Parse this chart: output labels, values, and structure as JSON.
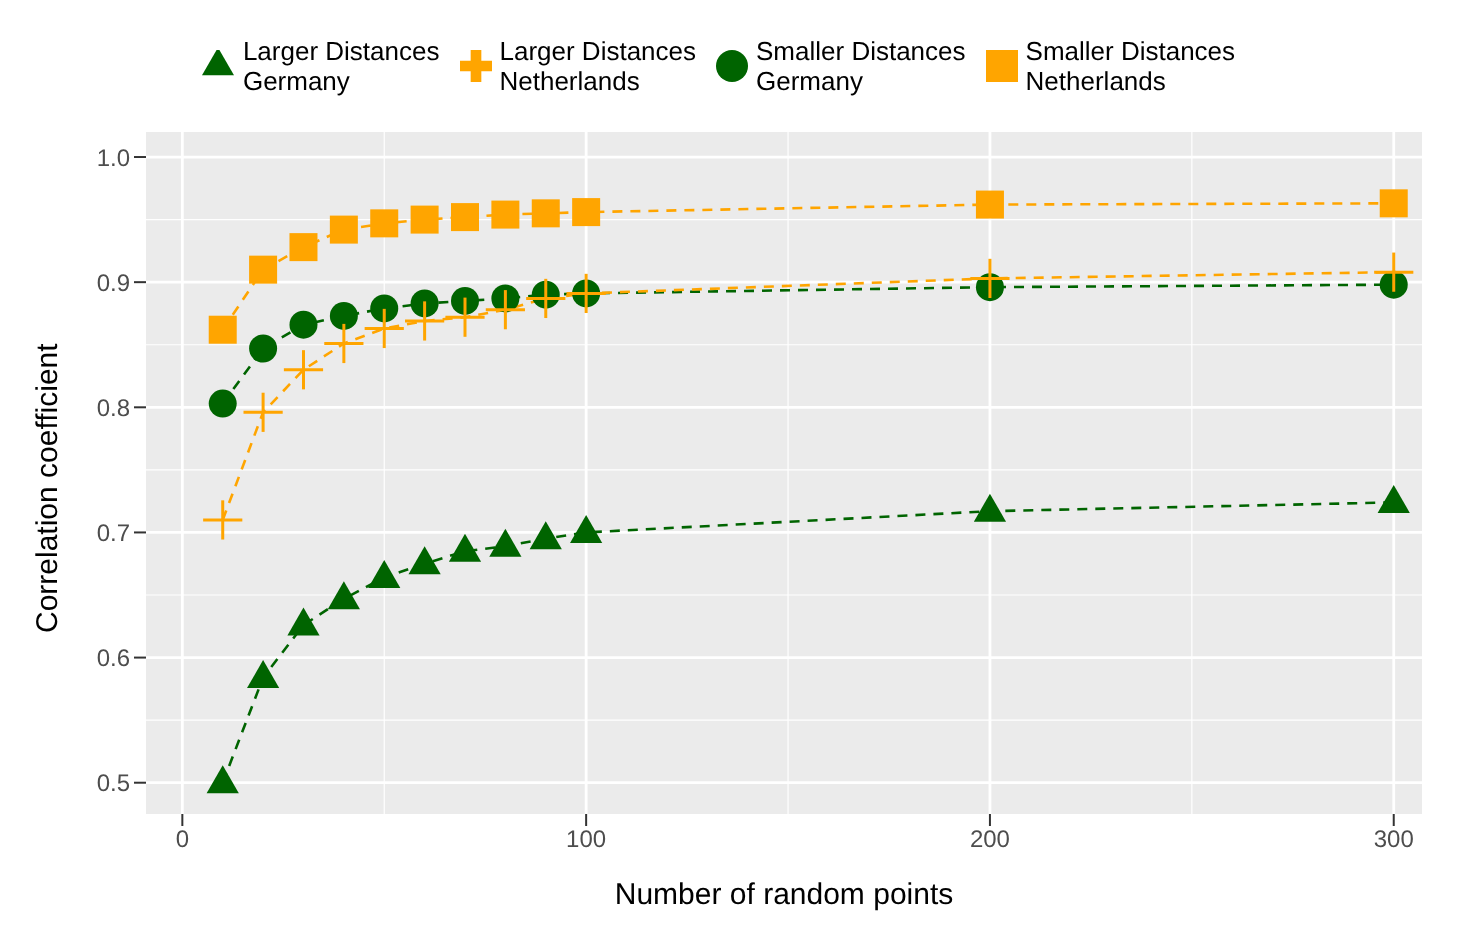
{
  "chart_data": {
    "type": "line",
    "xlabel": "Number of random points",
    "ylabel": "Correlation coefficient",
    "x": [
      10,
      20,
      30,
      40,
      50,
      60,
      70,
      80,
      90,
      100,
      200,
      300
    ],
    "series": [
      {
        "name": "Smaller Distances\nGermany",
        "color": "#006400",
        "marker": "circle",
        "values": [
          0.803,
          0.847,
          0.866,
          0.873,
          0.879,
          0.883,
          0.885,
          0.887,
          0.89,
          0.891,
          0.896,
          0.898
        ]
      },
      {
        "name": "Larger Distances\nGermany",
        "color": "#006400",
        "marker": "triangle",
        "values": [
          0.5,
          0.584,
          0.626,
          0.647,
          0.664,
          0.675,
          0.685,
          0.689,
          0.695,
          0.7,
          0.717,
          0.724
        ]
      },
      {
        "name": "Smaller Distances\nNetherlands",
        "color": "#ffa500",
        "marker": "square",
        "values": [
          0.862,
          0.91,
          0.928,
          0.942,
          0.947,
          0.95,
          0.952,
          0.954,
          0.955,
          0.956,
          0.962,
          0.963
        ]
      },
      {
        "name": "Larger Distances\nNetherlands",
        "color": "#ffa500",
        "marker": "cross",
        "values": [
          0.71,
          0.796,
          0.83,
          0.851,
          0.863,
          0.869,
          0.872,
          0.878,
          0.887,
          0.891,
          0.903,
          0.908
        ]
      }
    ],
    "xlim": [
      -9,
      307
    ],
    "xticks": [
      0,
      100,
      200,
      300
    ],
    "ylim": [
      0.475,
      1.02
    ],
    "yticks": [
      {
        "value": 0.5,
        "label": "0.5"
      },
      {
        "value": 0.6,
        "label": "0.6"
      },
      {
        "value": 0.7,
        "label": "0.7"
      },
      {
        "value": 0.8,
        "label": "0.8"
      },
      {
        "value": 0.9,
        "label": "0.9"
      },
      {
        "value": 1,
        "label": "1.0"
      }
    ],
    "grid": true,
    "legend": "top",
    "line_style": "dashed"
  }
}
